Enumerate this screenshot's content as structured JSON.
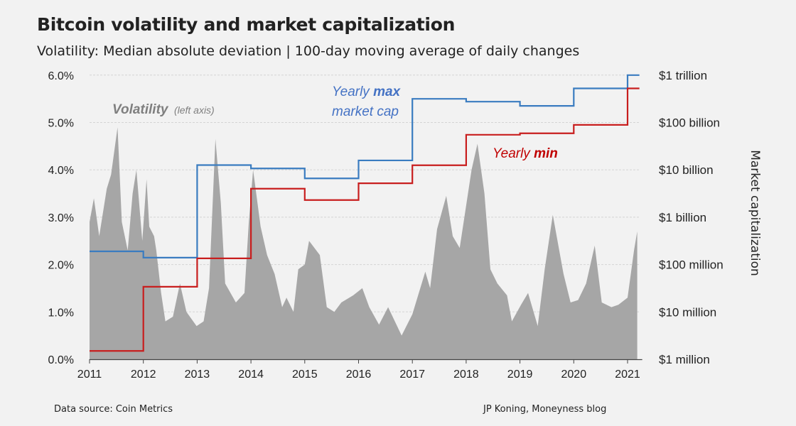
{
  "title": "Bitcoin volatility and market capitalization",
  "subtitle": "Volatility: Median absolute deviation | 100-day moving average of daily changes",
  "footer": {
    "source": "Data source: Coin Metrics",
    "credit": "JP Koning, Moneyness blog"
  },
  "chart_data": {
    "type": "area+step-line",
    "title": "Bitcoin volatility and market capitalization",
    "xlim": [
      2011,
      2021.22
    ],
    "x_ticks": [
      "2011",
      "2012",
      "2013",
      "2014",
      "2015",
      "2016",
      "2017",
      "2018",
      "2019",
      "2020",
      "2021"
    ],
    "left_axis": {
      "ylim": [
        0,
        6
      ],
      "ticks": [
        "0.0%",
        "1.0%",
        "2.0%",
        "3.0%",
        "4.0%",
        "5.0%",
        "6.0%"
      ],
      "unit": "%"
    },
    "right_axis": {
      "label": "Market capitalization",
      "scale": "log",
      "ylim_usd_millions": [
        1,
        1000000
      ],
      "ticks": [
        "$1 million",
        "$10 million",
        "$100 million",
        "$1 billion",
        "$10 billion",
        "$100 billion",
        "$1 trillion"
      ]
    },
    "grid": true,
    "annotations": {
      "volatility": "Volatility",
      "volatility_note": "(left axis)",
      "max_1": "Yearly ",
      "max_bold": "max",
      "max_2": "market cap",
      "min_1": "Yearly ",
      "min_bold": "min"
    },
    "colors": {
      "volatility": "#a6a6a6",
      "max": "#3a7cc0",
      "min": "#c81e1e",
      "max_text": "#4472c4",
      "min_text": "#c00000"
    },
    "volatility": {
      "x": [
        2011.0,
        2011.08,
        2011.18,
        2011.32,
        2011.4,
        2011.52,
        2011.6,
        2011.71,
        2011.8,
        2011.87,
        2011.98,
        2012.06,
        2012.11,
        2012.2,
        2012.24,
        2012.33,
        2012.41,
        2012.55,
        2012.68,
        2012.8,
        2012.99,
        2013.12,
        2013.22,
        2013.34,
        2013.44,
        2013.52,
        2013.72,
        2013.88,
        2013.96,
        2014.04,
        2014.18,
        2014.3,
        2014.44,
        2014.58,
        2014.66,
        2014.79,
        2014.88,
        2015.0,
        2015.08,
        2015.28,
        2015.41,
        2015.55,
        2015.68,
        2015.9,
        2016.07,
        2016.2,
        2016.38,
        2016.55,
        2016.8,
        2017.0,
        2017.24,
        2017.33,
        2017.46,
        2017.63,
        2017.75,
        2017.88,
        2017.96,
        2018.1,
        2018.21,
        2018.34,
        2018.45,
        2018.58,
        2018.76,
        2018.85,
        2019.02,
        2019.15,
        2019.33,
        2019.46,
        2019.61,
        2019.81,
        2019.94,
        2020.08,
        2020.23,
        2020.39,
        2020.52,
        2020.7,
        2020.83,
        2021.0,
        2021.12,
        2021.18
      ],
      "y": [
        2.9,
        3.4,
        2.6,
        3.6,
        3.9,
        4.9,
        2.9,
        2.3,
        3.5,
        4.0,
        2.5,
        3.8,
        2.8,
        2.6,
        2.3,
        1.4,
        0.8,
        0.9,
        1.6,
        1.0,
        0.7,
        0.8,
        1.5,
        4.65,
        3.3,
        1.6,
        1.2,
        1.4,
        2.9,
        4.0,
        2.8,
        2.2,
        1.8,
        1.1,
        1.3,
        1.0,
        1.9,
        2.0,
        2.5,
        2.2,
        1.1,
        1.0,
        1.2,
        1.35,
        1.5,
        1.1,
        0.73,
        1.1,
        0.5,
        0.95,
        1.85,
        1.5,
        2.75,
        3.45,
        2.6,
        2.35,
        2.95,
        4.0,
        4.55,
        3.5,
        1.9,
        1.6,
        1.35,
        0.8,
        1.15,
        1.4,
        0.7,
        1.9,
        3.05,
        1.8,
        1.2,
        1.25,
        1.6,
        2.4,
        1.2,
        1.1,
        1.15,
        1.3,
        2.3,
        2.7
      ]
    },
    "series": [
      {
        "name": "Yearly max market cap",
        "unit": "USD millions",
        "years": [
          2011,
          2012,
          2013,
          2014,
          2015,
          2016,
          2017,
          2018,
          2019,
          2020,
          2021
        ],
        "values": [
          190,
          140,
          12600,
          10700,
          6600,
          15800,
          316000,
          275000,
          224000,
          525000,
          1000000
        ]
      },
      {
        "name": "Yearly min",
        "unit": "USD millions",
        "years": [
          2011,
          2012,
          2013,
          2014,
          2015,
          2016,
          2017,
          2018,
          2019,
          2020,
          2021
        ],
        "values": [
          1.5,
          34,
          135,
          4000,
          2300,
          5200,
          12500,
          55000,
          59000,
          89000,
          525000
        ]
      }
    ]
  }
}
